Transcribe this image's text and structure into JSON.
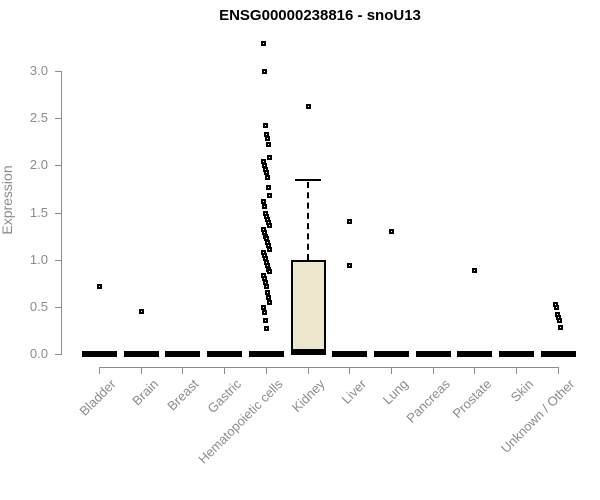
{
  "chart_data": {
    "type": "boxplot",
    "title": "ENSG00000238816 - snoU13",
    "xlabel": "",
    "ylabel": "Expression",
    "ylim": [
      0,
      3.3
    ],
    "yticks": [
      0.0,
      0.5,
      1.0,
      1.5,
      2.0,
      2.5,
      3.0
    ],
    "ytick_labels": [
      "0.0",
      "0.5",
      "1.0",
      "1.5",
      "2.0",
      "2.5",
      "3.0"
    ],
    "grid": false,
    "legend": false,
    "categories": [
      "Bladder",
      "Brain",
      "Breast",
      "Gastric",
      "Hematopoietic cells",
      "Kidney",
      "Liver",
      "Lung",
      "Pancreas",
      "Prostate",
      "Skin",
      "Unknown / Other"
    ],
    "boxes": [
      {
        "label": "Bladder",
        "q1": 0,
        "median": 0,
        "q3": 0,
        "whisker_low": 0,
        "whisker_high": 0,
        "points": [
          0.72
        ]
      },
      {
        "label": "Brain",
        "q1": 0,
        "median": 0,
        "q3": 0,
        "whisker_low": 0,
        "whisker_high": 0,
        "points": [
          0.45
        ]
      },
      {
        "label": "Breast",
        "q1": 0,
        "median": 0,
        "q3": 0,
        "whisker_low": 0,
        "whisker_high": 0,
        "points": []
      },
      {
        "label": "Gastric",
        "q1": 0,
        "median": 0,
        "q3": 0,
        "whisker_low": 0,
        "whisker_high": 0,
        "points": []
      },
      {
        "label": "Hematopoietic cells",
        "q1": 0,
        "median": 0,
        "q3": 0,
        "whisker_low": 0,
        "whisker_high": 0,
        "points": [
          3.29,
          3.0,
          2.42,
          2.33,
          2.28,
          2.22,
          2.08,
          2.04,
          2.0,
          1.96,
          1.92,
          1.87,
          1.77,
          1.68,
          1.62,
          1.56,
          1.49,
          1.46,
          1.43,
          1.39,
          1.36,
          1.32,
          1.29,
          1.25,
          1.22,
          1.18,
          1.15,
          1.11,
          1.08,
          1.04,
          1.01,
          0.97,
          0.94,
          0.9,
          0.87,
          0.83,
          0.8,
          0.76,
          0.72,
          0.65,
          0.6,
          0.55,
          0.49,
          0.44,
          0.36,
          0.27
        ]
      },
      {
        "label": "Kidney",
        "q1": 0,
        "median": 0.02,
        "q3": 1.0,
        "whisker_low": 0,
        "whisker_high": 1.84,
        "points": [
          2.62
        ]
      },
      {
        "label": "Liver",
        "q1": 0,
        "median": 0,
        "q3": 0,
        "whisker_low": 0,
        "whisker_high": 0,
        "points": [
          1.4,
          0.94
        ]
      },
      {
        "label": "Lung",
        "q1": 0,
        "median": 0,
        "q3": 0,
        "whisker_low": 0,
        "whisker_high": 0,
        "points": [
          1.3
        ]
      },
      {
        "label": "Pancreas",
        "q1": 0,
        "median": 0,
        "q3": 0,
        "whisker_low": 0,
        "whisker_high": 0,
        "points": []
      },
      {
        "label": "Prostate",
        "q1": 0,
        "median": 0,
        "q3": 0,
        "whisker_low": 0,
        "whisker_high": 0,
        "points": [
          0.89
        ]
      },
      {
        "label": "Skin",
        "q1": 0,
        "median": 0,
        "q3": 0,
        "whisker_low": 0,
        "whisker_high": 0,
        "points": []
      },
      {
        "label": "Unknown / Other",
        "q1": 0,
        "median": 0,
        "q3": 0,
        "whisker_low": 0,
        "whisker_high": 0,
        "points": [
          0.52,
          0.49,
          0.42,
          0.39,
          0.35,
          0.28
        ]
      }
    ],
    "colors": {
      "box_fill": "#ede7ce",
      "box_border": "#000000",
      "point": "#000000",
      "median": "#000000",
      "axis": "#8c8c8c",
      "axis_text": "#8c8c8c",
      "title_text": "#000000",
      "background": "#ffffff"
    }
  }
}
